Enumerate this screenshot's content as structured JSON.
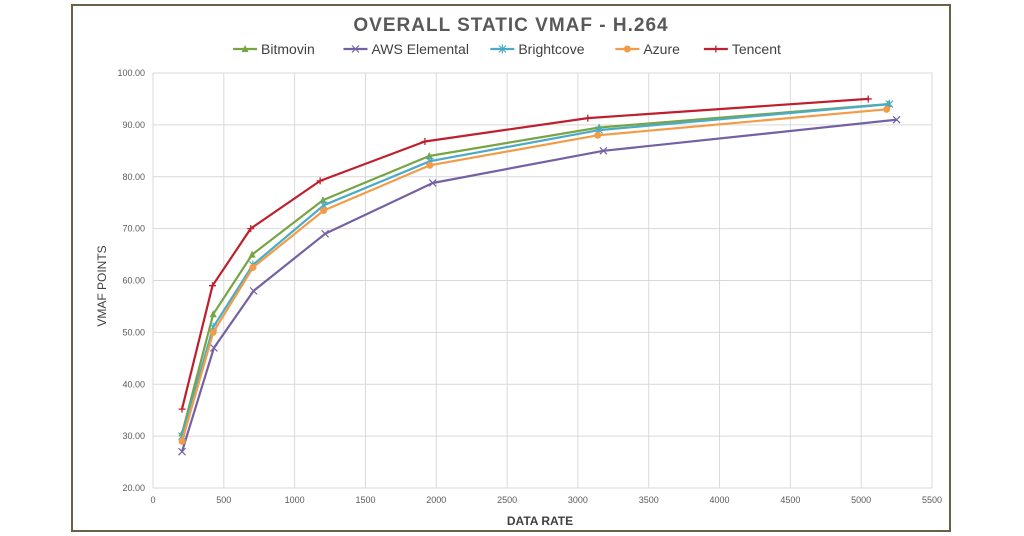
{
  "chart_data": {
    "type": "line",
    "title": "OVERALL STATIC VMAF - H.264",
    "xlabel": "DATA RATE",
    "ylabel": "VMAF POINTS",
    "xlim": [
      0,
      5500
    ],
    "ylim": [
      20,
      100
    ],
    "x_ticks": [
      "0",
      "500",
      "1000",
      "1500",
      "2000",
      "2500",
      "3000",
      "3500",
      "4000",
      "4500",
      "5000",
      "5500"
    ],
    "y_ticks": [
      "20.00",
      "30.00",
      "40.00",
      "50.00",
      "60.00",
      "70.00",
      "80.00",
      "90.00",
      "100.00"
    ],
    "grid": true,
    "legend_position": "top",
    "series": [
      {
        "name": "Bitmovin",
        "color": "#77a543",
        "marker": "triangle",
        "points": [
          [
            205,
            30.5
          ],
          [
            425,
            53.5
          ],
          [
            700,
            65.0
          ],
          [
            1200,
            75.5
          ],
          [
            1950,
            84.0
          ],
          [
            3150,
            89.5
          ],
          [
            5190,
            94.0
          ]
        ]
      },
      {
        "name": "AWS Elemental",
        "color": "#7461a3",
        "marker": "x",
        "points": [
          [
            205,
            27.0
          ],
          [
            430,
            47.0
          ],
          [
            710,
            58.0
          ],
          [
            1215,
            69.0
          ],
          [
            1975,
            78.8
          ],
          [
            3180,
            85.0
          ],
          [
            5250,
            91.0
          ]
        ]
      },
      {
        "name": "Brightcove",
        "color": "#4babc6",
        "marker": "star",
        "points": [
          [
            205,
            30.0
          ],
          [
            425,
            51.0
          ],
          [
            705,
            63.0
          ],
          [
            1205,
            74.5
          ],
          [
            1955,
            83.0
          ],
          [
            3150,
            89.0
          ],
          [
            5200,
            94.0
          ]
        ]
      },
      {
        "name": "Azure",
        "color": "#f39c48",
        "marker": "circle",
        "points": [
          [
            205,
            29.0
          ],
          [
            425,
            50.0
          ],
          [
            705,
            62.5
          ],
          [
            1205,
            73.5
          ],
          [
            1955,
            82.2
          ],
          [
            3140,
            88.0
          ],
          [
            5180,
            93.0
          ]
        ]
      },
      {
        "name": "Tencent",
        "color": "#bf1e2d",
        "marker": "plus",
        "points": [
          [
            205,
            35.2
          ],
          [
            420,
            59.0
          ],
          [
            690,
            70.0
          ],
          [
            1180,
            79.2
          ],
          [
            1920,
            86.8
          ],
          [
            3070,
            91.3
          ],
          [
            5050,
            95.0
          ]
        ]
      }
    ]
  }
}
